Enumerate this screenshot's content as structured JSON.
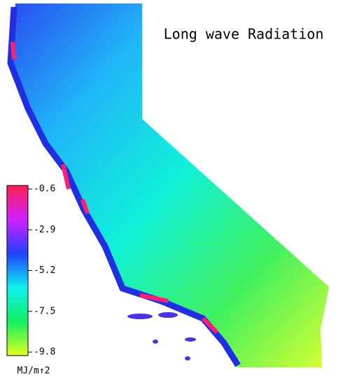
{
  "title": "Long wave Radiation",
  "colorbar": {
    "label": "MJ/m↑2",
    "lim": [
      -9.8,
      -0.6
    ],
    "ticks": [
      -0.6,
      -2.9,
      -5.2,
      -7.5,
      -9.8
    ],
    "colors": [
      "#ff2050",
      "#d020ff",
      "#2040ff",
      "#10f0f0",
      "#10f060",
      "#e0ff20"
    ]
  }
}
